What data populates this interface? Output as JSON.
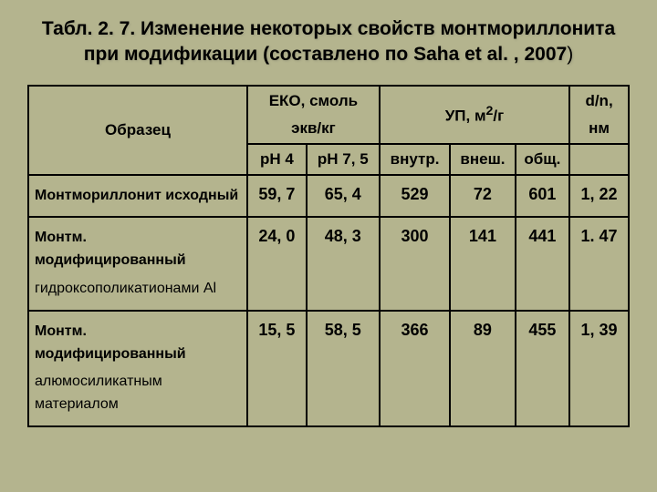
{
  "title_html": "Табл. 2. 7. Изменение некоторых свойств монтмориллонита  при модификации (составлено по Saha et al. , 2007",
  "title_trail": ")",
  "headers": {
    "sample": "Образец",
    "eko_top": "ЕКО, смоль",
    "eko_sub": "экв/кг",
    "up": "УП, м",
    "up_sup": "2",
    "up_tail": "/г",
    "dn_top": "d/n,",
    "dn_sub": "нм",
    "ph4": "pH 4",
    "ph75": "pH 7, 5",
    "vnutr": "внутр.",
    "vnesh": "внеш.",
    "obsh": "общ."
  },
  "rows": [
    {
      "label_main": "Монтмориллонит исходный",
      "label_sub": "",
      "ph4": "59, 7",
      "ph75": "65, 4",
      "vnutr": "529",
      "vnesh": "72",
      "obsh": "601",
      "dn": "1, 22"
    },
    {
      "label_main": "Монтм. модифицированный",
      "label_sub": "гидроксополикатионами Al",
      "ph4": "24, 0",
      "ph75": "48, 3",
      "vnutr": "300",
      "vnesh": "141",
      "obsh": "441",
      "dn": "1. 47"
    },
    {
      "label_main": "Монтм. модифицированный",
      "label_sub": "алюмосиликатным<br>материалом",
      "ph4": "15, 5",
      "ph75": "58, 5",
      "vnutr": "366",
      "vnesh": "89",
      "obsh": "455",
      "dn": "1, 39"
    }
  ]
}
